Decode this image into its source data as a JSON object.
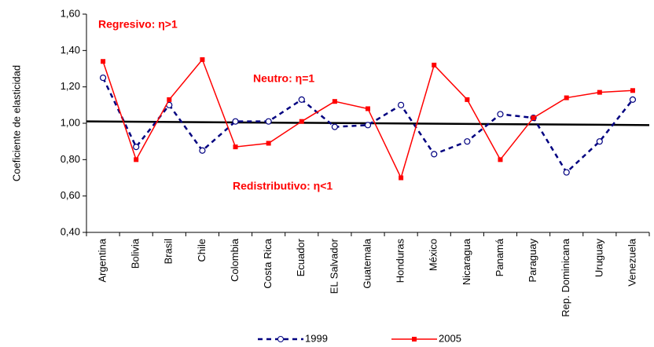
{
  "chart_data": {
    "type": "line",
    "y_label": "Coeficiente de elasticidad",
    "categories": [
      "Argentina",
      "Bolivia",
      "Brasil",
      "Chile",
      "Colombia",
      "Costa Rica",
      "Ecuador",
      "EL Salvador",
      "Guatemala",
      "Honduras",
      "México",
      "Nicaragua",
      "Panamá",
      "Paraguay",
      "Rep. Dominicana",
      "Uruguay",
      "Venezuela"
    ],
    "series": [
      {
        "name": "1999",
        "color": "#000080",
        "values": [
          1.25,
          0.87,
          1.1,
          0.85,
          1.01,
          1.01,
          1.13,
          0.98,
          0.99,
          1.1,
          0.83,
          0.9,
          1.05,
          1.03,
          0.73,
          0.9,
          1.13
        ]
      },
      {
        "name": "2005",
        "color": "#ff0000",
        "values": [
          1.34,
          0.8,
          1.13,
          1.35,
          0.87,
          0.89,
          1.01,
          1.12,
          1.08,
          0.7,
          1.32,
          1.13,
          0.8,
          1.03,
          1.14,
          1.17,
          1.18
        ]
      }
    ],
    "reference_line": [
      1.01,
      0.99
    ],
    "annotations": [
      "Regresivo: η>1",
      "Neutro: η=1",
      "Redistributivo: η<1"
    ],
    "ylim": [
      0.4,
      1.6
    ],
    "yticks": [
      {
        "value": 0.4,
        "label": "0,40"
      },
      {
        "value": 0.6,
        "label": "0,60"
      },
      {
        "value": 0.8,
        "label": "0,80"
      },
      {
        "value": 1.0,
        "label": "1,00"
      },
      {
        "value": 1.2,
        "label": "1,20"
      },
      {
        "value": 1.4,
        "label": "1,40"
      },
      {
        "value": 1.6,
        "label": "1,60"
      }
    ],
    "grid": false
  }
}
